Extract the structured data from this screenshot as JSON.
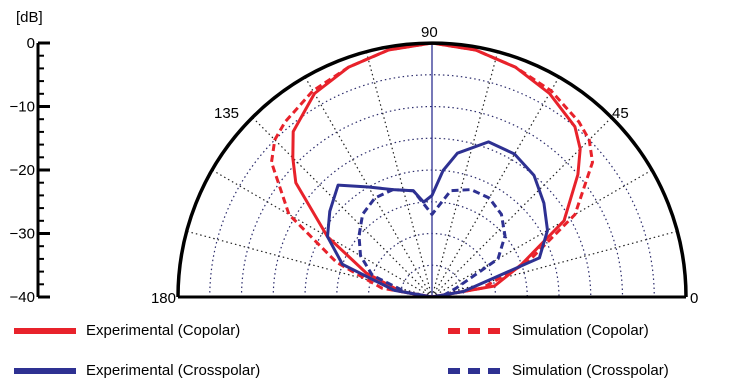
{
  "chart_data": {
    "type": "line",
    "subtype": "polar-half",
    "r_unit_label": "[dB]",
    "r_ticks": [
      0,
      -10,
      -20,
      -30,
      -40
    ],
    "r_tick_labels": [
      "0",
      "−10",
      "−20",
      "−30",
      "−40"
    ],
    "r_range": [
      -40,
      0
    ],
    "angle_range": [
      0,
      180
    ],
    "angle_ticks": [
      0,
      45,
      90,
      135,
      180
    ],
    "angle_tick_labels": [
      "0",
      "45",
      "90",
      "135",
      "180"
    ],
    "grid": true,
    "legend_position": "bottom",
    "colors": {
      "copolar": "#e8222b",
      "crosspolar": "#2e3192",
      "frame": "#000000"
    },
    "series": [
      {
        "name": "Experimental (Copolar)",
        "style": "solid",
        "color": "#e8222b",
        "angle": [
          0,
          10,
          20,
          30,
          40,
          45,
          50,
          60,
          70,
          80,
          90,
          100,
          110,
          120,
          130,
          135,
          140,
          150,
          160,
          170,
          180
        ],
        "r": [
          -40,
          -30,
          -25,
          -16,
          -10,
          -7,
          -5,
          -3,
          -1.5,
          -0.5,
          0,
          -0.5,
          -1.5,
          -3,
          -6,
          -9,
          -12,
          -21,
          -29,
          -35,
          -40
        ]
      },
      {
        "name": "Simulation (Copolar)",
        "style": "dashed",
        "color": "#e8222b",
        "angle": [
          0,
          10,
          20,
          30,
          40,
          45,
          50,
          60,
          70,
          80,
          90,
          100,
          110,
          120,
          130,
          135,
          140,
          150,
          160,
          170,
          180
        ],
        "r": [
          -40,
          -32,
          -24,
          -14,
          -7,
          -5,
          -4,
          -2.5,
          -1.5,
          -0.5,
          0,
          -0.5,
          -1.5,
          -2.5,
          -4,
          -5,
          -7,
          -14,
          -24,
          -32,
          -40
        ]
      },
      {
        "name": "Experimental (Crosspolar)",
        "style": "solid",
        "color": "#2e3192",
        "angle": [
          0,
          10,
          20,
          30,
          40,
          50,
          60,
          70,
          80,
          85,
          90,
          95,
          100,
          110,
          120,
          130,
          140,
          150,
          160,
          170,
          180
        ],
        "r": [
          -40,
          -35,
          -22,
          -19,
          -17,
          -15,
          -14,
          -14,
          -17,
          -20,
          -24,
          -25,
          -23,
          -22,
          -20,
          -17,
          -19,
          -21,
          -25,
          -34,
          -40
        ]
      },
      {
        "name": "Simulation (Crosspolar)",
        "style": "dashed",
        "color": "#2e3192",
        "angle": [
          0,
          10,
          20,
          30,
          40,
          50,
          60,
          70,
          80,
          90,
          100,
          110,
          120,
          130,
          140,
          150,
          160,
          170,
          180
        ],
        "r": [
          -40,
          -38,
          -36,
          -28,
          -25,
          -23,
          -22,
          -22,
          -23,
          -27,
          -23,
          -22,
          -22,
          -23,
          -25,
          -27,
          -30,
          -36,
          -40
        ]
      }
    ]
  }
}
